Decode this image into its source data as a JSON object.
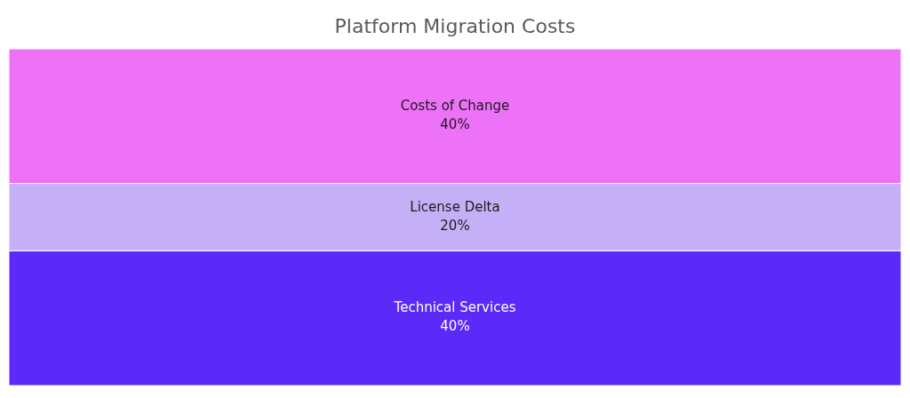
{
  "chart_data": {
    "type": "other",
    "title": "Platform Migration Costs",
    "categories": [
      "Costs of Change",
      "License Delta",
      "Technical Services"
    ],
    "values": [
      40,
      20,
      40
    ],
    "colors": [
      "#ee72f7",
      "#c5b0f7",
      "#5b29f8"
    ],
    "value_labels": [
      "40%",
      "20%",
      "40%"
    ]
  }
}
